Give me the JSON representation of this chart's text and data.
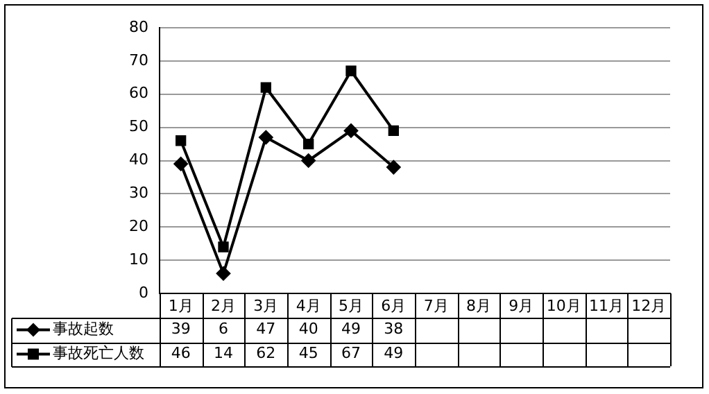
{
  "chart_data": {
    "type": "line",
    "categories": [
      "1月",
      "2月",
      "3月",
      "4月",
      "5月",
      "6月",
      "7月",
      "8月",
      "9月",
      "10月",
      "11月",
      "12月"
    ],
    "series": [
      {
        "name": "事故起数",
        "color": "#000000",
        "marker": "diamond",
        "values": [
          39,
          6,
          47,
          40,
          49,
          38,
          null,
          null,
          null,
          null,
          null,
          null
        ]
      },
      {
        "name": "事故死亡人数",
        "color": "#000000",
        "marker": "square",
        "values": [
          46,
          14,
          62,
          45,
          67,
          49,
          null,
          null,
          null,
          null,
          null,
          null
        ]
      }
    ],
    "ylim": [
      0,
      80
    ],
    "yticks": [
      0,
      10,
      20,
      30,
      40,
      50,
      60,
      70,
      80
    ],
    "grid": "y",
    "legend": "bottom",
    "data_labels": true,
    "line_style": "solid"
  }
}
